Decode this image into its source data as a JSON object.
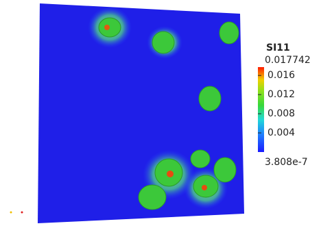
{
  "colorbar": {
    "title": "SI11",
    "max": 0.017742,
    "min": 3.808e-07,
    "ticks": [
      0.016,
      0.012,
      0.008,
      0.004
    ]
  }
}
